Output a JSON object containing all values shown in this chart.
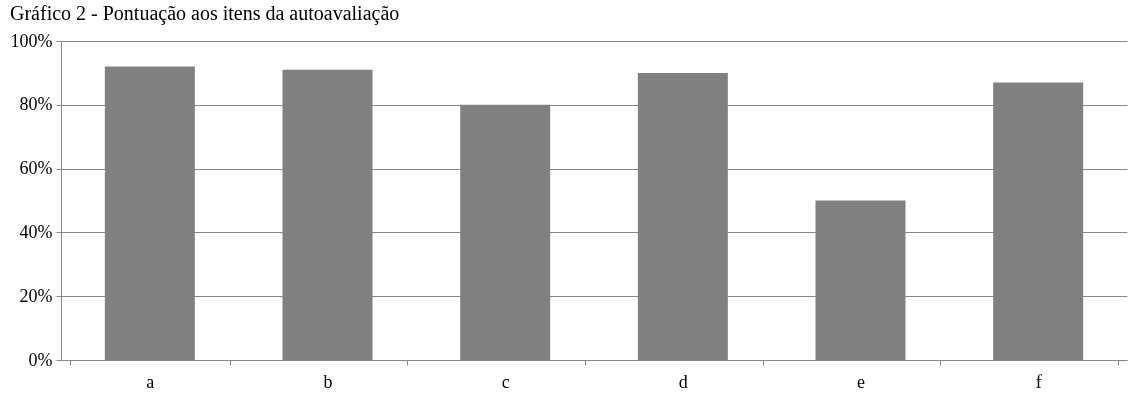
{
  "chart_data": {
    "type": "bar",
    "title": "Gráfico 2 - Pontuação aos itens da autoavaliação",
    "categories": [
      "a",
      "b",
      "c",
      "d",
      "e",
      "f"
    ],
    "values": [
      92,
      91,
      80,
      90,
      50,
      87
    ],
    "color": "#808080",
    "ylim": [
      0,
      100
    ],
    "yticks": [
      {
        "value": 0,
        "label": "0%"
      },
      {
        "value": 20,
        "label": "20%"
      },
      {
        "value": 40,
        "label": "40%"
      },
      {
        "value": 60,
        "label": "60%"
      },
      {
        "value": 80,
        "label": "80%"
      },
      {
        "value": 100,
        "label": "100%"
      }
    ],
    "grid": "y"
  }
}
